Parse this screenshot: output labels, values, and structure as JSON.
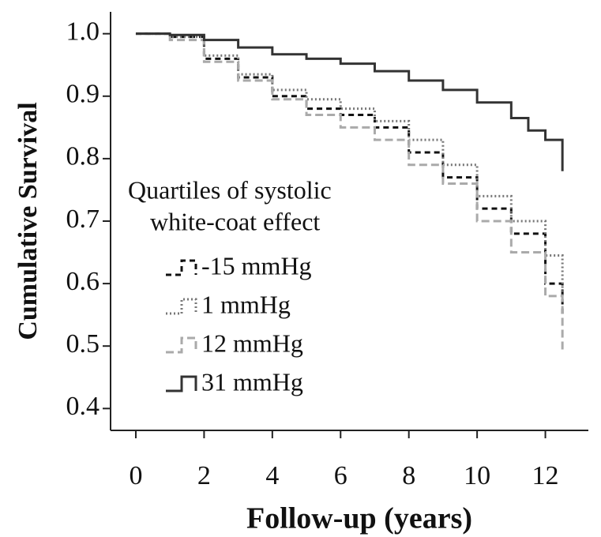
{
  "chart_data": {
    "type": "step",
    "y_label": "Cumulative Survival",
    "x_label": "Follow-up (years)",
    "legend_title": [
      "Quartiles of systolic",
      "white-coat effect"
    ],
    "xlim": [
      -0.74,
      13.26
    ],
    "xticks": [
      0,
      2,
      4,
      6,
      8,
      10,
      12
    ],
    "ylim": [
      0.365,
      1.035
    ],
    "yticks": [
      {
        "value": 0.4,
        "label": "0.4"
      },
      {
        "value": 0.5,
        "label": "0.5"
      },
      {
        "value": 0.6,
        "label": "0.6"
      },
      {
        "value": 0.7,
        "label": "0.7"
      },
      {
        "value": 0.8,
        "label": "0.8"
      },
      {
        "value": 0.9,
        "label": "0.9"
      },
      {
        "value": 1.0,
        "label": "1.0"
      }
    ],
    "series": [
      {
        "name": "-15 mmHg",
        "color": "#111111",
        "dash": "7,5",
        "x": [
          0,
          1,
          2,
          3,
          4,
          5,
          6,
          7,
          8,
          9,
          10,
          11,
          12,
          12.5
        ],
        "values": [
          1.0,
          0.995,
          0.96,
          0.93,
          0.9,
          0.88,
          0.87,
          0.85,
          0.81,
          0.77,
          0.72,
          0.68,
          0.6,
          0.55
        ]
      },
      {
        "name": "1 mmHg",
        "color": "#777777",
        "dash": "2,3",
        "x": [
          0,
          1,
          2,
          3,
          4,
          5,
          6,
          7,
          8,
          9,
          10,
          11,
          12,
          12.5
        ],
        "values": [
          1.0,
          0.995,
          0.965,
          0.935,
          0.91,
          0.895,
          0.88,
          0.86,
          0.83,
          0.79,
          0.74,
          0.7,
          0.645,
          0.58
        ]
      },
      {
        "name": "12 mmHg",
        "color": "#aaaaaa",
        "dash": "10,5",
        "x": [
          0,
          1,
          2,
          3,
          4,
          5,
          6,
          7,
          8,
          9,
          10,
          11,
          12,
          12.5
        ],
        "values": [
          1.0,
          0.99,
          0.955,
          0.925,
          0.895,
          0.87,
          0.85,
          0.83,
          0.79,
          0.76,
          0.7,
          0.65,
          0.58,
          0.49
        ]
      },
      {
        "name": "31 mmHg",
        "color": "#333333",
        "dash": "",
        "x": [
          0,
          1,
          2,
          3,
          4,
          5,
          6,
          7,
          8,
          9,
          10,
          11,
          11.5,
          12,
          12.5
        ],
        "values": [
          1.0,
          0.998,
          0.99,
          0.978,
          0.967,
          0.96,
          0.952,
          0.94,
          0.925,
          0.91,
          0.89,
          0.865,
          0.845,
          0.83,
          0.78
        ]
      }
    ]
  }
}
